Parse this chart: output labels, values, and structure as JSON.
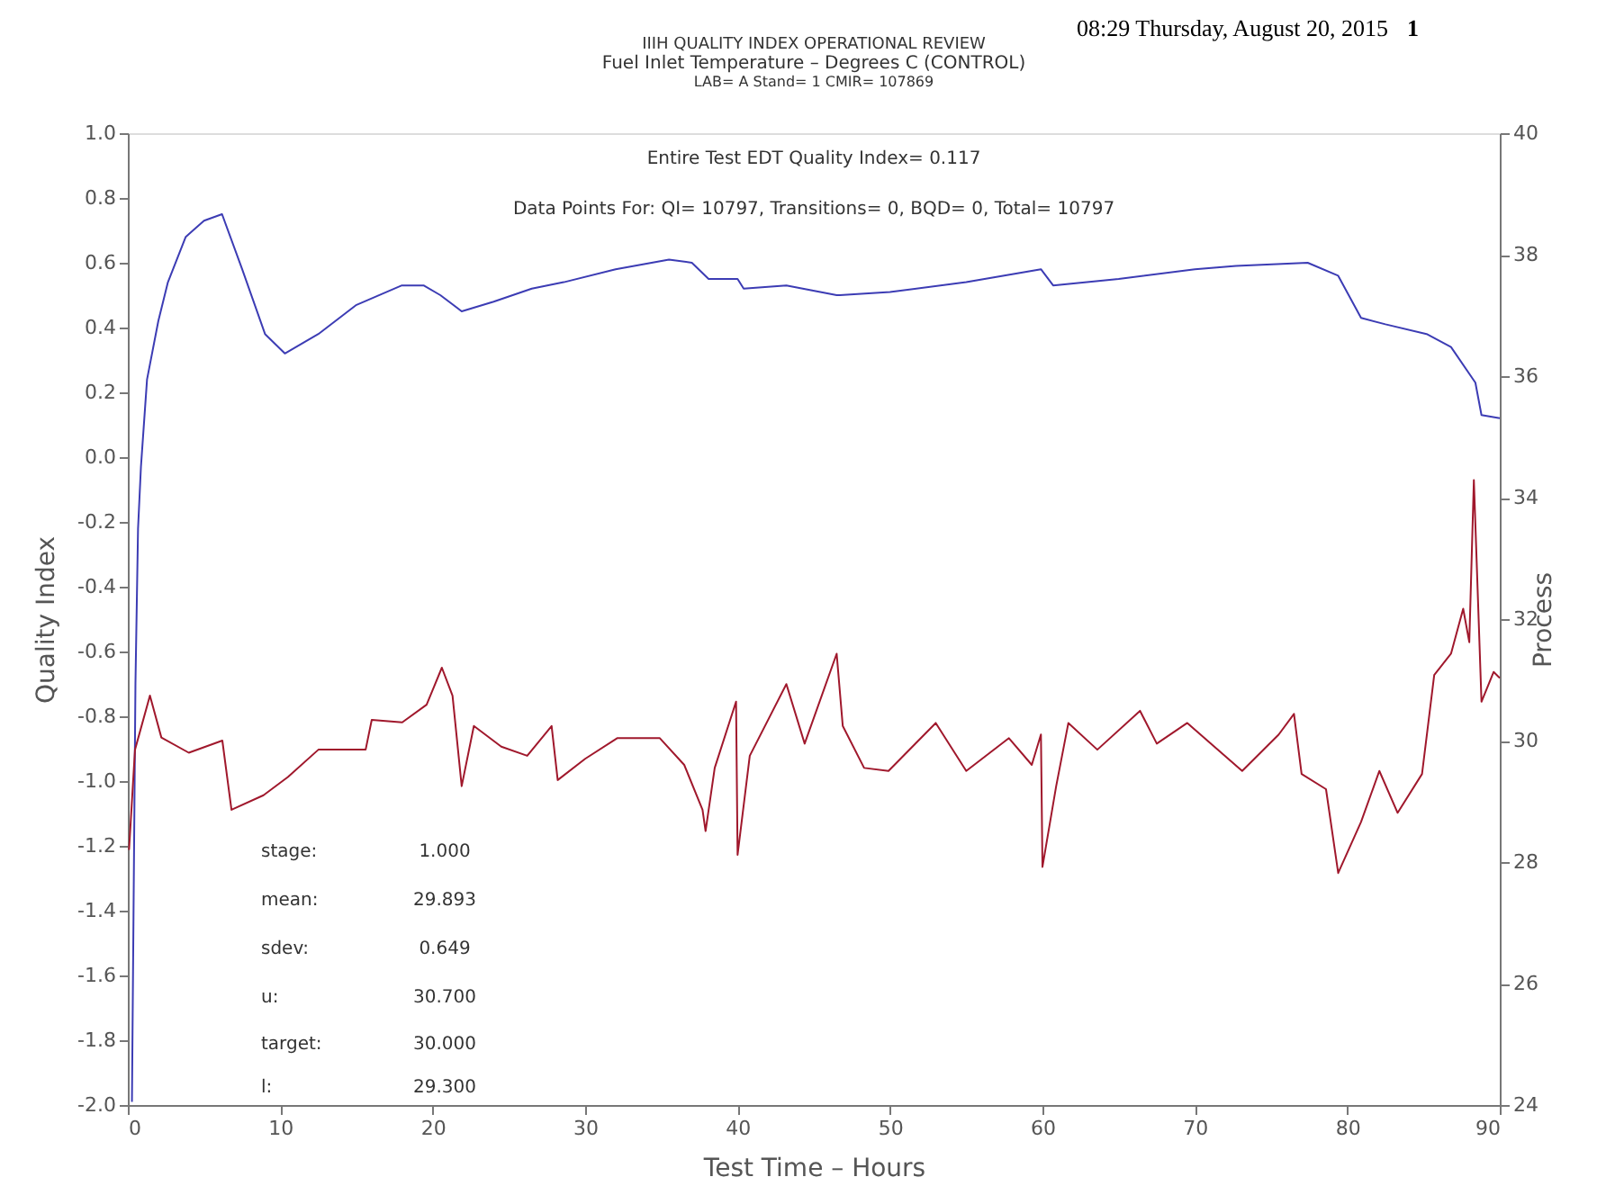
{
  "chart_data": {
    "type": "line",
    "title": "IIIH QUALITY INDEX OPERATIONAL REVIEW",
    "subtitle": "Fuel Inlet Temperature – Degrees C (CONTROL)",
    "xlabel": "Test Time – Hours",
    "ylabel": "Quality Index",
    "y2label": "Process",
    "annotations": [
      "LAB= A Stand= 1 CMIR= 107869",
      "08:29 Thursday, August 20, 2015",
      "1",
      "Entire Test EDT Quality Index=   0.117",
      "Data Points For: QI= 10797, Transitions=    0, BQD=    0, Total= 10797",
      "stage:",
      "1.000",
      "mean:",
      "29.893",
      "sdev:",
      "0.649",
      "u:",
      "30.700",
      "target:",
      "30.000",
      "l:",
      "29.300"
    ],
    "xlim": [
      0,
      90
    ],
    "xticks": [
      0,
      10,
      20,
      30,
      40,
      50,
      60,
      70,
      80,
      90
    ],
    "ylim": [
      -2,
      1
    ],
    "yticks": [
      {
        "value": -2,
        "label": "-2.0"
      },
      {
        "value": -1.8,
        "label": "-1.8"
      },
      {
        "value": -1.6,
        "label": "-1.6"
      },
      {
        "value": -1.4,
        "label": "-1.4"
      },
      {
        "value": -1.2,
        "label": "-1.2"
      },
      {
        "value": -1,
        "label": "-1.0"
      },
      {
        "value": -0.8,
        "label": "-0.8"
      },
      {
        "value": -0.6,
        "label": "-0.6"
      },
      {
        "value": -0.4,
        "label": "-0.4"
      },
      {
        "value": -0.2,
        "label": "-0.2"
      },
      {
        "value": 0,
        "label": "0.0"
      },
      {
        "value": 0.2,
        "label": "0.2"
      },
      {
        "value": 0.4,
        "label": "0.4"
      },
      {
        "value": 0.6,
        "label": "0.6"
      },
      {
        "value": 0.8,
        "label": "0.8"
      },
      {
        "value": 1,
        "label": "1.0"
      }
    ],
    "y2lim": [
      24,
      40
    ],
    "y2ticks": [
      24,
      26,
      28,
      30,
      32,
      34,
      36,
      38,
      40
    ],
    "grid": false,
    "series": [
      {
        "color": "#3c3cb4",
        "x": [
          0.27,
          0.5,
          0.67,
          0.86,
          1.26,
          2.0,
          2.63,
          3.8,
          5.0,
          6.18,
          7.5,
          9.0,
          10.3,
          12.5,
          15.0,
          17.98,
          19.4,
          20.5,
          21.9,
          24.0,
          26.5,
          28.6,
          32.0,
          35.5,
          37.0,
          38.1,
          40.0,
          40.4,
          43.2,
          46.5,
          46.7,
          50.0,
          55.0,
          59.9,
          60.7,
          65.0,
          70.0,
          72.7,
          77.4,
          79.4,
          80.9,
          82.5,
          85.2,
          86.8,
          88.4,
          88.8,
          90.0
        ],
        "values": [
          -1.99,
          -0.7,
          -0.22,
          -0.03,
          0.24,
          0.42,
          0.54,
          0.68,
          0.73,
          0.75,
          0.58,
          0.38,
          0.32,
          0.38,
          0.47,
          0.53,
          0.53,
          0.5,
          0.45,
          0.48,
          0.52,
          0.54,
          0.58,
          0.61,
          0.6,
          0.55,
          0.55,
          0.52,
          0.53,
          0.5,
          0.5,
          0.51,
          0.54,
          0.58,
          0.53,
          0.55,
          0.58,
          0.59,
          0.6,
          0.56,
          0.43,
          0.41,
          0.38,
          0.34,
          0.23,
          0.13,
          0.12
        ]
      },
      {
        "color": "#a0182c",
        "axis": "y2",
        "x": [
          0.08,
          0.47,
          1.45,
          2.2,
          4.0,
          6.2,
          6.8,
          8.9,
          10.5,
          12.5,
          15.6,
          16.0,
          18.0,
          19.6,
          20.6,
          21.3,
          21.9,
          22.7,
          24.5,
          26.2,
          27.8,
          28.2,
          30.0,
          32.1,
          34.9,
          36.5,
          37.7,
          37.9,
          38.5,
          39.9,
          40.0,
          40.8,
          43.2,
          44.4,
          46.5,
          46.9,
          48.3,
          49.9,
          53.0,
          55.0,
          57.8,
          59.3,
          59.9,
          60.0,
          60.9,
          61.7,
          63.6,
          66.4,
          67.5,
          69.5,
          73.1,
          75.5,
          76.5,
          77.0,
          78.6,
          79.4,
          80.9,
          82.1,
          83.3,
          84.9,
          85.7,
          86.8,
          87.6,
          88.0,
          88.3,
          88.8,
          89.6,
          90.0
        ],
        "values": [
          28.2,
          29.85,
          30.74,
          30.05,
          29.8,
          30.0,
          28.86,
          29.1,
          29.4,
          29.85,
          29.85,
          30.34,
          30.3,
          30.59,
          31.2,
          30.74,
          29.25,
          30.24,
          29.9,
          29.75,
          30.24,
          29.35,
          29.7,
          30.04,
          30.04,
          29.6,
          28.86,
          28.51,
          29.55,
          30.64,
          28.12,
          29.75,
          30.93,
          29.95,
          31.43,
          30.24,
          29.55,
          29.5,
          30.29,
          29.5,
          30.04,
          29.6,
          30.1,
          27.92,
          29.25,
          30.29,
          29.85,
          30.49,
          29.95,
          30.29,
          29.5,
          30.1,
          30.44,
          29.45,
          29.2,
          27.82,
          28.66,
          29.5,
          28.81,
          29.45,
          31.08,
          31.43,
          32.17,
          31.62,
          34.29,
          30.64,
          31.13,
          31.03
        ]
      }
    ]
  }
}
